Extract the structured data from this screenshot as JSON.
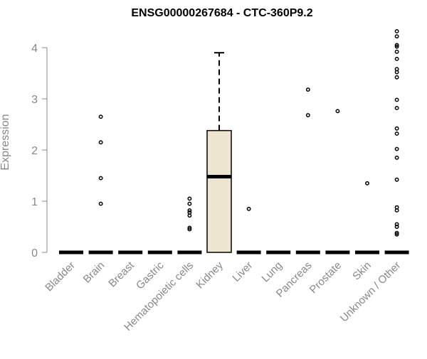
{
  "chart_data": {
    "type": "box",
    "title": "ENSG00000267684 - CTC-360P9.2",
    "xlabel": "",
    "ylabel": "Expression",
    "ylim": [
      0,
      4.3
    ],
    "yticks": [
      0,
      1,
      2,
      3,
      4
    ],
    "grid": false,
    "categories": [
      "Bladder",
      "Brain",
      "Breast",
      "Gastric",
      "Hematopoietic cells",
      "Kidney",
      "Liver",
      "Lung",
      "Pancreas",
      "Prostate",
      "Skin",
      "Unknown / Other"
    ],
    "boxes": [
      {
        "category": "Bladder",
        "min": 0,
        "q1": 0,
        "median": 0,
        "q3": 0,
        "max": 0,
        "outliers": []
      },
      {
        "category": "Brain",
        "min": 0,
        "q1": 0,
        "median": 0,
        "q3": 0,
        "max": 0,
        "outliers": [
          0.95,
          1.45,
          2.15,
          2.65
        ]
      },
      {
        "category": "Breast",
        "min": 0,
        "q1": 0,
        "median": 0,
        "q3": 0,
        "max": 0,
        "outliers": []
      },
      {
        "category": "Gastric",
        "min": 0,
        "q1": 0,
        "median": 0,
        "q3": 0,
        "max": 0,
        "outliers": []
      },
      {
        "category": "Hematopoietic cells",
        "min": 0,
        "q1": 0,
        "median": 0,
        "q3": 0,
        "max": 0,
        "outliers": [
          0.45,
          0.48,
          0.72,
          0.78,
          0.82,
          0.95,
          1.05
        ]
      },
      {
        "category": "Kidney",
        "min": 0,
        "q1": 0,
        "median": 1.48,
        "q3": 2.38,
        "max": 3.9,
        "outliers": []
      },
      {
        "category": "Liver",
        "min": 0,
        "q1": 0,
        "median": 0,
        "q3": 0,
        "max": 0,
        "outliers": [
          0.85
        ]
      },
      {
        "category": "Lung",
        "min": 0,
        "q1": 0,
        "median": 0,
        "q3": 0,
        "max": 0,
        "outliers": []
      },
      {
        "category": "Pancreas",
        "min": 0,
        "q1": 0,
        "median": 0,
        "q3": 0,
        "max": 0,
        "outliers": [
          2.68,
          3.18
        ]
      },
      {
        "category": "Prostate",
        "min": 0,
        "q1": 0,
        "median": 0,
        "q3": 0,
        "max": 0,
        "outliers": [
          2.76
        ]
      },
      {
        "category": "Skin",
        "min": 0,
        "q1": 0,
        "median": 0,
        "q3": 0,
        "max": 0,
        "outliers": [
          1.35
        ]
      },
      {
        "category": "Unknown / Other",
        "min": 0,
        "q1": 0,
        "median": 0,
        "q3": 0,
        "max": 0,
        "outliers": [
          0.35,
          0.38,
          0.5,
          0.55,
          0.82,
          0.88,
          1.42,
          1.85,
          2.02,
          2.32,
          2.42,
          2.82,
          2.98,
          3.42,
          3.52,
          3.58,
          3.78,
          3.92,
          4.02,
          4.05,
          4.22,
          4.32
        ]
      }
    ],
    "colors": {
      "box_fill": "#ede5cf",
      "stroke": "#000000",
      "axis": "#888888",
      "label": "#888888"
    }
  }
}
